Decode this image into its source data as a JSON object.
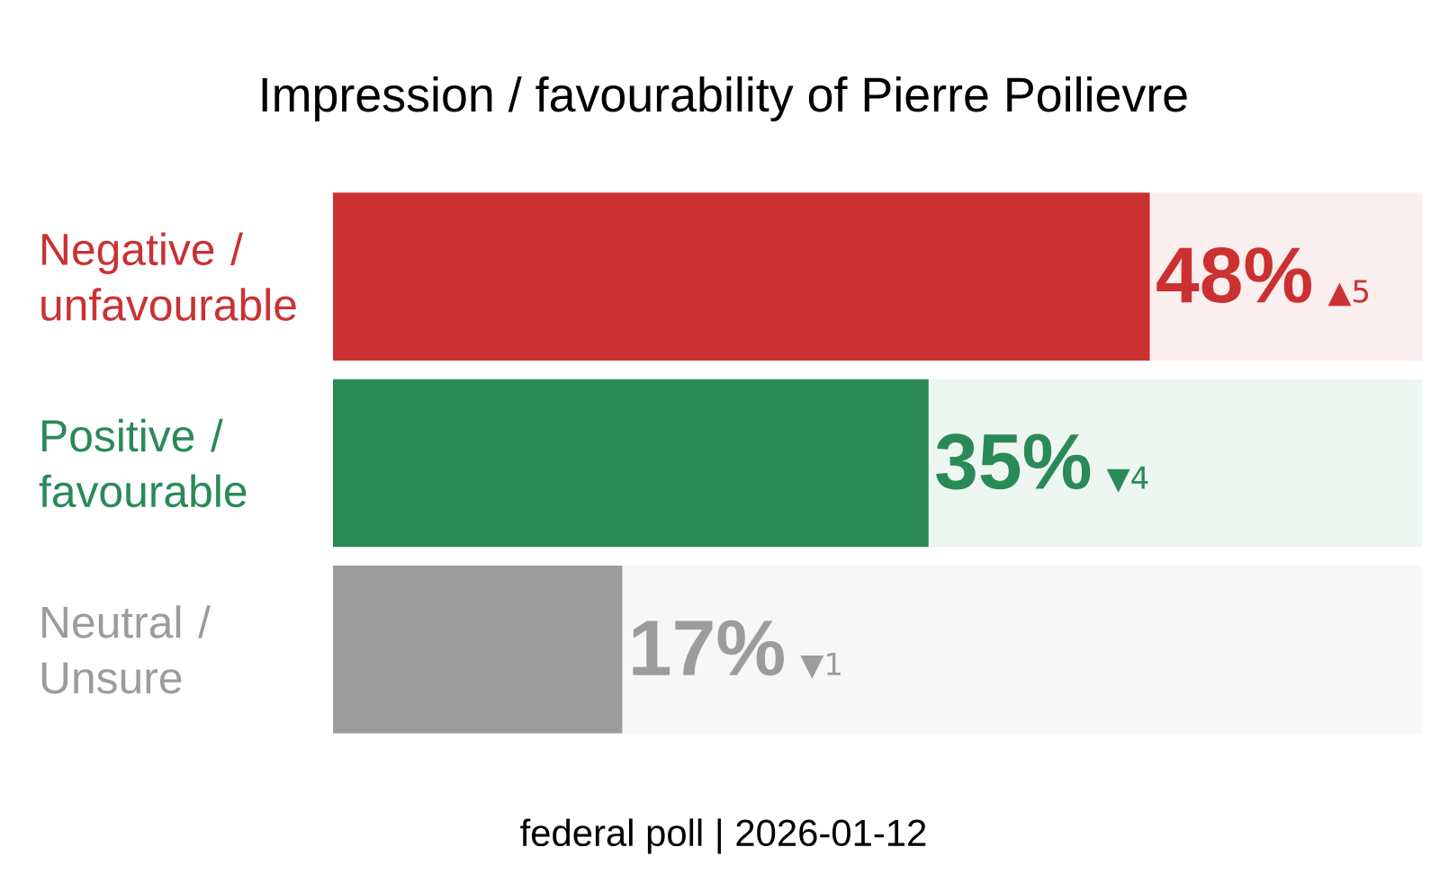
{
  "chart_data": {
    "type": "bar",
    "orientation": "horizontal",
    "title": "Impression / favourability of Pierre Poilievre",
    "categories": [
      "Negative / unfavourable",
      "Positive / favourable",
      "Neutral / Unsure"
    ],
    "values": [
      48,
      35,
      17
    ],
    "colors": [
      "#cc3131",
      "#2a8a57",
      "#9c9c9c"
    ],
    "value_labels": [
      "48%",
      "35%",
      "17%"
    ],
    "xlim": [
      0,
      64
    ],
    "annotations": [
      "▲5",
      "▼4",
      "▼1",
      "federal poll | 2026-01-12"
    ]
  }
}
